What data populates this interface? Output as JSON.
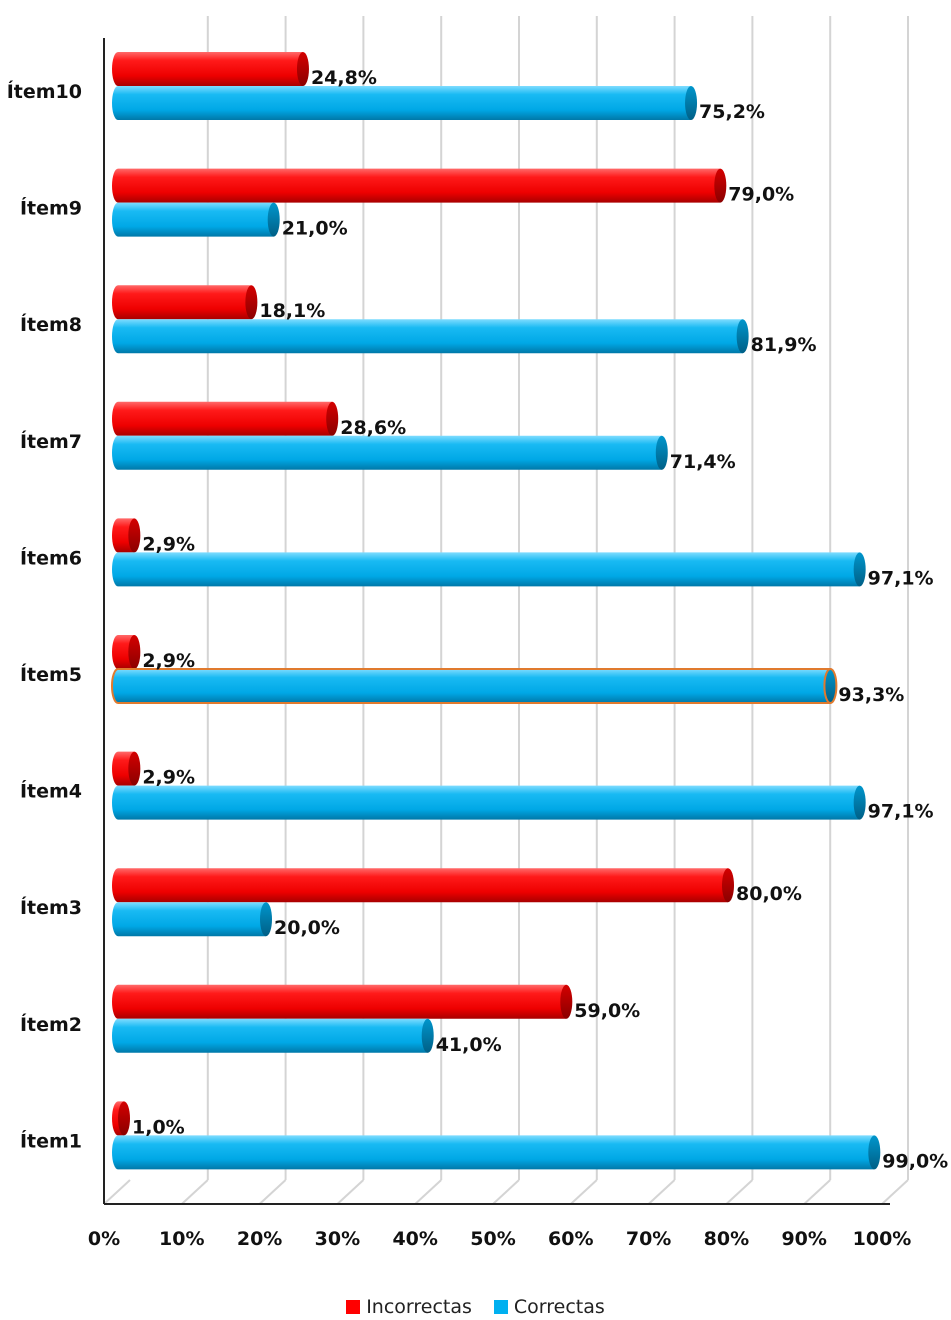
{
  "chart_data": {
    "type": "bar",
    "orientation": "horizontal",
    "categories": [
      "Ítem10",
      "Ítem9",
      "Ítem8",
      "Ítem7",
      "Ítem6",
      "Ítem5",
      "Ítem4",
      "Ítem3",
      "Ítem2",
      "Ítem1"
    ],
    "series": [
      {
        "name": "Incorrectas",
        "color": "#ff0000",
        "values": [
          24.8,
          79.0,
          18.1,
          28.6,
          2.9,
          2.9,
          2.9,
          80.0,
          59.0,
          1.0
        ],
        "labels": [
          "24,8%",
          "79,0%",
          "18,1%",
          "28,6%",
          "2,9%",
          "2,9%",
          "2,9%",
          "80,0%",
          "59,0%",
          "1,0%"
        ]
      },
      {
        "name": "Correctas",
        "color": "#00b0f0",
        "values": [
          75.2,
          21.0,
          81.9,
          71.4,
          97.1,
          93.3,
          97.1,
          20.0,
          41.0,
          99.0
        ],
        "labels": [
          "75,2%",
          "21,0%",
          "81,9%",
          "71,4%",
          "97,1%",
          "93,3%",
          "97,1%",
          "20,0%",
          "41,0%",
          "99,0%"
        ]
      }
    ],
    "xlim": [
      0,
      100
    ],
    "xticks": [
      "0%",
      "10%",
      "20%",
      "30%",
      "40%",
      "50%",
      "60%",
      "70%",
      "80%",
      "90%",
      "100%"
    ],
    "grid": true,
    "legend": "bottom",
    "style": "3d-cylinder"
  }
}
